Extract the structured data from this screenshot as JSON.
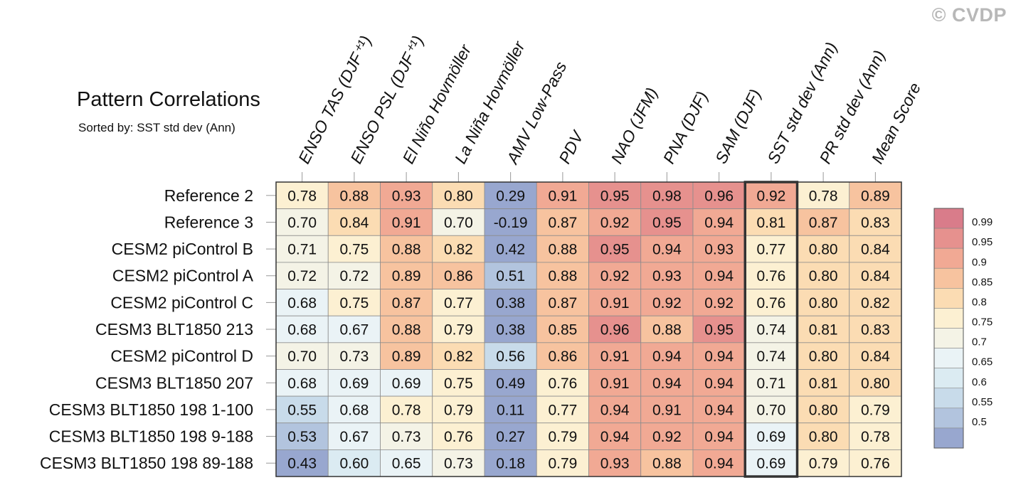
{
  "watermark": "© CVDP",
  "title": "Pattern Correlations",
  "subtitle": "Sorted by: SST std dev (Ann)",
  "chart_data": {
    "type": "heatmap",
    "title": "Pattern Correlations",
    "subtitle": "Sorted by: SST std dev (Ann)",
    "columns": [
      "ENSO TAS (DJF⁺¹)",
      "ENSO PSL (DJF⁺¹)",
      "El Niño Hovmöller",
      "La Niña Hovmöller",
      "AMV Low-Pass",
      "PDV",
      "NAO (JFM)",
      "PNA (DJF)",
      "SAM (DJF)",
      "SST std dev (Ann)",
      "PR std dev (Ann)",
      "Mean Score"
    ],
    "rows": [
      "Reference 2",
      "Reference 3",
      "CESM2 piControl B",
      "CESM2 piControl A",
      "CESM2 piControl C",
      "CESM3 BLT1850 213",
      "CESM2 piControl D",
      "CESM3 BLT1850 207",
      "CESM3 BLT1850 198 1-100",
      "CESM3 BLT1850 198 9-188",
      "CESM3 BLT1850 198 89-188"
    ],
    "values": [
      [
        "0.78",
        "0.88",
        "0.93",
        "0.80",
        "0.29",
        "0.91",
        "0.95",
        "0.98",
        "0.96",
        "0.92",
        "0.78",
        "0.89"
      ],
      [
        "0.70",
        "0.84",
        "0.91",
        "0.70",
        "-0.19",
        "0.87",
        "0.92",
        "0.95",
        "0.94",
        "0.81",
        "0.87",
        "0.83"
      ],
      [
        "0.71",
        "0.75",
        "0.88",
        "0.82",
        "0.42",
        "0.88",
        "0.95",
        "0.94",
        "0.93",
        "0.77",
        "0.80",
        "0.84"
      ],
      [
        "0.72",
        "0.72",
        "0.89",
        "0.86",
        "0.51",
        "0.88",
        "0.92",
        "0.93",
        "0.94",
        "0.76",
        "0.80",
        "0.84"
      ],
      [
        "0.68",
        "0.75",
        "0.87",
        "0.77",
        "0.38",
        "0.87",
        "0.91",
        "0.92",
        "0.92",
        "0.76",
        "0.80",
        "0.82"
      ],
      [
        "0.68",
        "0.67",
        "0.88",
        "0.79",
        "0.38",
        "0.85",
        "0.96",
        "0.88",
        "0.95",
        "0.74",
        "0.81",
        "0.83"
      ],
      [
        "0.70",
        "0.73",
        "0.89",
        "0.82",
        "0.56",
        "0.86",
        "0.91",
        "0.94",
        "0.94",
        "0.74",
        "0.80",
        "0.84"
      ],
      [
        "0.68",
        "0.69",
        "0.69",
        "0.75",
        "0.49",
        "0.76",
        "0.91",
        "0.94",
        "0.94",
        "0.71",
        "0.81",
        "0.80"
      ],
      [
        "0.55",
        "0.68",
        "0.78",
        "0.79",
        "0.11",
        "0.77",
        "0.94",
        "0.91",
        "0.94",
        "0.70",
        "0.80",
        "0.79"
      ],
      [
        "0.53",
        "0.67",
        "0.73",
        "0.76",
        "0.27",
        "0.79",
        "0.94",
        "0.92",
        "0.94",
        "0.69",
        "0.80",
        "0.78"
      ],
      [
        "0.43",
        "0.60",
        "0.65",
        "0.73",
        "0.18",
        "0.79",
        "0.93",
        "0.88",
        "0.94",
        "0.69",
        "0.79",
        "0.76"
      ]
    ],
    "highlighted_column": "SST std dev (Ann)",
    "colorbar": {
      "labels": [
        "0.99",
        "0.95",
        "0.9",
        "0.85",
        "0.8",
        "0.75",
        "0.7",
        "0.65",
        "0.6",
        "0.55",
        "0.5"
      ],
      "thresholds": [
        0.5,
        0.55,
        0.6,
        0.65,
        0.7,
        0.75,
        0.8,
        0.85,
        0.9,
        0.95,
        0.99
      ],
      "colors": [
        "#98a7cf",
        "#b2c4de",
        "#c8dbea",
        "#dbebf2",
        "#eaf3f6",
        "#f4f3e6",
        "#fcf0d2",
        "#fbdcb3",
        "#f7c39f",
        "#f1a994",
        "#e6918e",
        "#d97c8a"
      ]
    }
  }
}
